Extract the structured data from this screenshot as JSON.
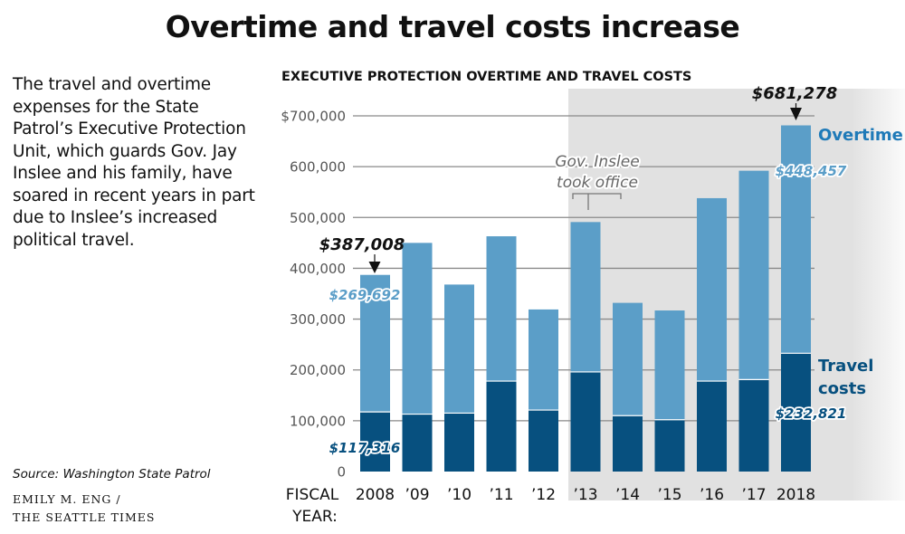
{
  "headline": "Overtime and travel costs increase",
  "intro": "The travel and overtime expenses for the State Patrol’s Executive Protection Unit, which guards Gov. Jay Inslee and his family, have soared in recent years in part due to Inslee’s increased political travel.",
  "source": "Source: Washington State Patrol",
  "credit": {
    "line1": "EMILY M. ENG /",
    "line2": "THE SEATTLE TIMES"
  },
  "colors": {
    "overtime": "#5b9ec8",
    "travel": "#07507f",
    "shade": "#e1e1e1",
    "grid": "#8a8a8a"
  },
  "chart_data": {
    "type": "bar",
    "stacked": true,
    "title": "EXECUTIVE PROTECTION OVERTIME AND TRAVEL COSTS",
    "xlabel_line1": "FISCAL",
    "xlabel_line2": "YEAR:",
    "categories": [
      "2008",
      "’09",
      "’10",
      "’11",
      "’12",
      "’13",
      "’14",
      "’15",
      "’16",
      "’17",
      "2018"
    ],
    "series": [
      {
        "name": "Travel costs",
        "legend_line1": "Travel",
        "legend_line2": "costs",
        "values": [
          117316,
          113000,
          115000,
          178000,
          121000,
          196000,
          110000,
          102000,
          178000,
          181000,
          232821
        ]
      },
      {
        "name": "Overtime",
        "legend_line1": "Overtime",
        "values": [
          269692,
          337000,
          253000,
          285000,
          198000,
          295000,
          222000,
          215000,
          360000,
          411000,
          448457
        ]
      }
    ],
    "totals": [
      387008,
      450000,
      368000,
      463000,
      319000,
      491000,
      332000,
      317000,
      538000,
      592000,
      681278
    ],
    "ylim": [
      0,
      700000
    ],
    "yticks": [
      0,
      100000,
      200000,
      300000,
      400000,
      500000,
      600000,
      700000
    ],
    "ytick_labels": [
      "0",
      "100,000",
      "200,000",
      "300,000",
      "400,000",
      "500,000",
      "600,000",
      "$700,000"
    ],
    "shaded_from_category": "’13",
    "annotations": {
      "inslee_line1": "Gov. Inslee",
      "inslee_line2": "took office",
      "first_total": "$387,008",
      "first_overtime": "$269,692",
      "first_travel": "$117,316",
      "last_total": "$681,278",
      "last_overtime": "$448,457",
      "last_travel": "$232,821"
    }
  }
}
